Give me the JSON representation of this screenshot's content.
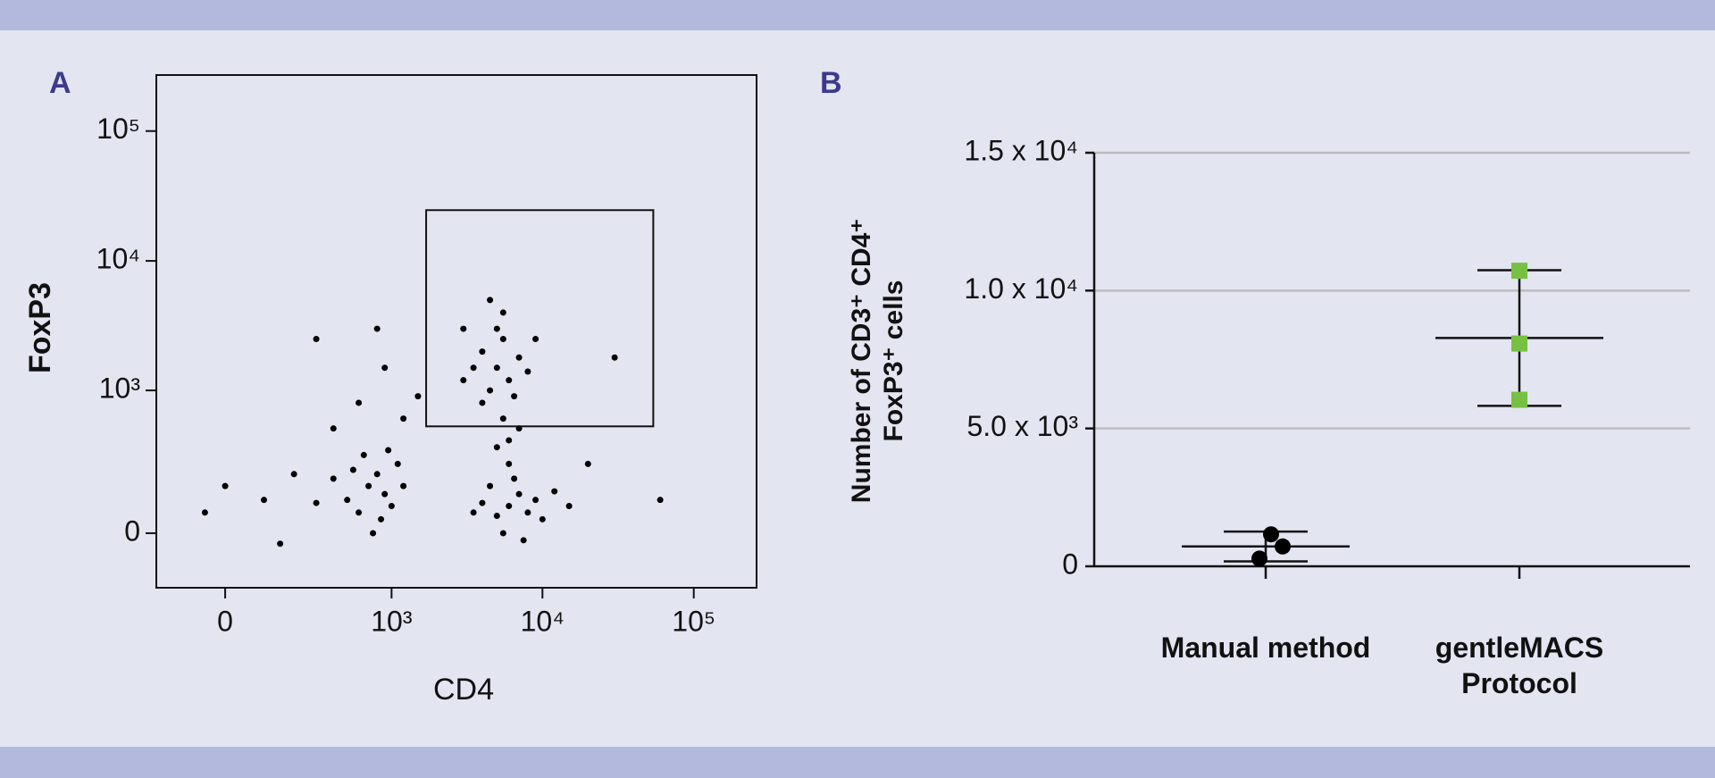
{
  "chart_data": [
    {
      "type": "scatter",
      "panel": "A",
      "xlabel": "CD4",
      "ylabel": "FoxP3",
      "xscale": "biexponential",
      "yscale": "biexponential",
      "xlim": [
        -200,
        260000
      ],
      "ylim": [
        -180,
        270000
      ],
      "xticks": [
        0,
        {
          "value": 1000,
          "label": "10³"
        },
        {
          "value": 10000,
          "label": "10⁴"
        },
        {
          "value": 100000,
          "label": "10⁵"
        }
      ],
      "yticks": [
        0,
        {
          "value": 1000,
          "label": "10³"
        },
        {
          "value": 10000,
          "label": "10⁴"
        },
        {
          "value": 100000,
          "label": "10⁵"
        }
      ],
      "color": "#000000",
      "gate": {
        "x": [
          1700,
          54000
        ],
        "y": [
          520,
          24600
        ]
      },
      "x": [
        700,
        500,
        900,
        800,
        600,
        1000,
        400,
        1200,
        650,
        850,
        300,
        1100,
        550,
        750,
        950,
        100,
        -50,
        200,
        0,
        150,
        600,
        900,
        400,
        1500,
        300,
        800,
        1200,
        6000,
        5000,
        7000,
        8000,
        4500,
        9000,
        5500,
        6500,
        10000,
        4000,
        7500,
        12000,
        6000,
        3500,
        15000,
        6000,
        5500,
        7000,
        5000,
        5000,
        4000,
        6000,
        4500,
        5500,
        3500,
        7000,
        5000,
        4000,
        6500,
        3000,
        8000,
        5500,
        4500,
        9000,
        3000,
        30000,
        60000,
        20000
      ],
      "y": [
        150,
        100,
        120,
        200,
        60,
        80,
        180,
        150,
        300,
        40,
        90,
        250,
        220,
        0,
        330,
        100,
        60,
        200,
        150,
        -30,
        800,
        1500,
        500,
        900,
        2500,
        3000,
        600,
        80,
        50,
        120,
        60,
        150,
        100,
        0,
        180,
        40,
        90,
        -20,
        130,
        250,
        60,
        80,
        400,
        600,
        500,
        350,
        1500,
        2000,
        1200,
        1000,
        2500,
        1500,
        1800,
        3000,
        800,
        900,
        1200,
        1400,
        4000,
        5000,
        2500,
        3000,
        1800,
        100,
        250
      ]
    },
    {
      "type": "dot",
      "panel": "B",
      "ylabel": "Number of CD3⁺ CD4⁺ FoxP3⁺ cells",
      "categories": [
        "Manual method",
        "gentleMACS Protocol"
      ],
      "values": [
        [
          1160,
          720,
          280
        ],
        [
          10720,
          8080,
          6040
        ]
      ],
      "means": [
        720,
        8280
      ],
      "errors": [
        540,
        2460
      ],
      "colors": [
        "#000000",
        "#77c043"
      ],
      "markers": [
        "circle",
        "square"
      ],
      "ylim": [
        0,
        15000
      ],
      "yticks": [
        0,
        {
          "value": 5000,
          "label": "5.0 x 10³"
        },
        {
          "value": 10000,
          "label": "1.0 x 10⁴"
        },
        {
          "value": 15000,
          "label": "1.5 x 10⁴"
        }
      ],
      "grid": true
    }
  ]
}
